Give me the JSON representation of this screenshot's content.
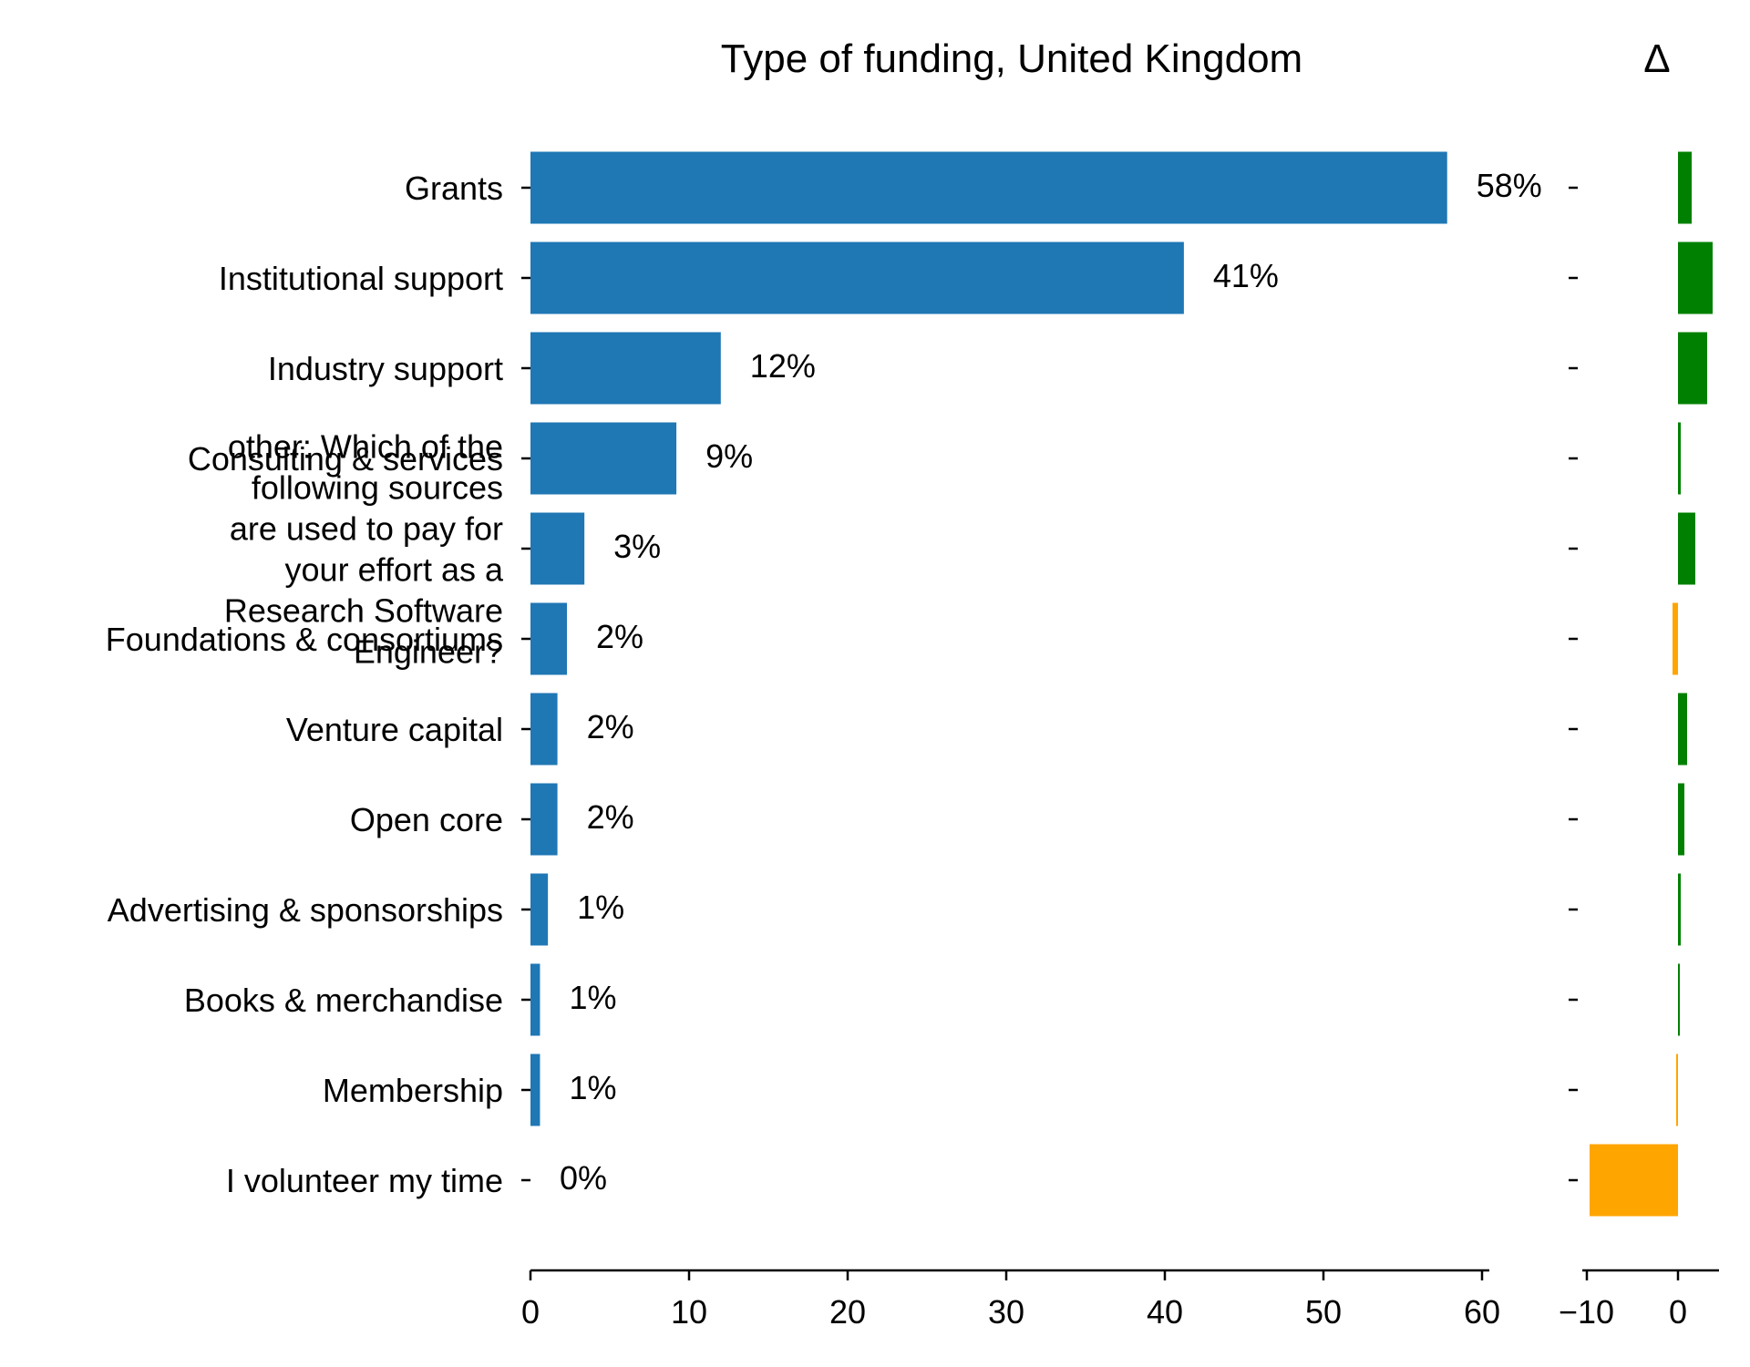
{
  "chart_data": [
    {
      "type": "bar",
      "orientation": "horizontal",
      "title": "Type of funding, United Kingdom",
      "categories": [
        "Grants",
        "Institutional support",
        "Industry support",
        "Consulting & services",
        "other: Which of the following sources are used to pay for your effort as a Research Software Engineer?",
        "Foundations & consortiums",
        "Venture capital",
        "Open core",
        "Advertising & sponsorships",
        "Books & merchandise",
        "Membership",
        "I volunteer my time"
      ],
      "values": [
        57.8,
        41.2,
        12.0,
        9.2,
        3.4,
        2.3,
        1.7,
        1.7,
        1.1,
        0.6,
        0.6,
        0.0
      ],
      "value_labels": [
        "58%",
        "41%",
        "12%",
        "9%",
        "3%",
        "2%",
        "2%",
        "2%",
        "1%",
        "1%",
        "1%",
        "0%"
      ],
      "xlim": [
        0,
        60
      ],
      "xticks": [
        0,
        10,
        20,
        30,
        40,
        50,
        60
      ],
      "xlabel": "",
      "ylabel": "",
      "bar_color": "#1f77b4",
      "grid": false
    },
    {
      "type": "bar",
      "orientation": "horizontal",
      "title": "Δ",
      "values": [
        1.5,
        3.8,
        3.2,
        0.3,
        1.9,
        -0.6,
        1.0,
        0.7,
        0.3,
        0.2,
        -0.2,
        -9.7
      ],
      "xlim": [
        -10.5,
        4.5
      ],
      "xticks": [
        -10,
        0
      ],
      "xtick_labels": [
        "−10",
        "0"
      ],
      "positive_color": "#008000",
      "negative_color": "#ffa500",
      "grid": false
    }
  ]
}
